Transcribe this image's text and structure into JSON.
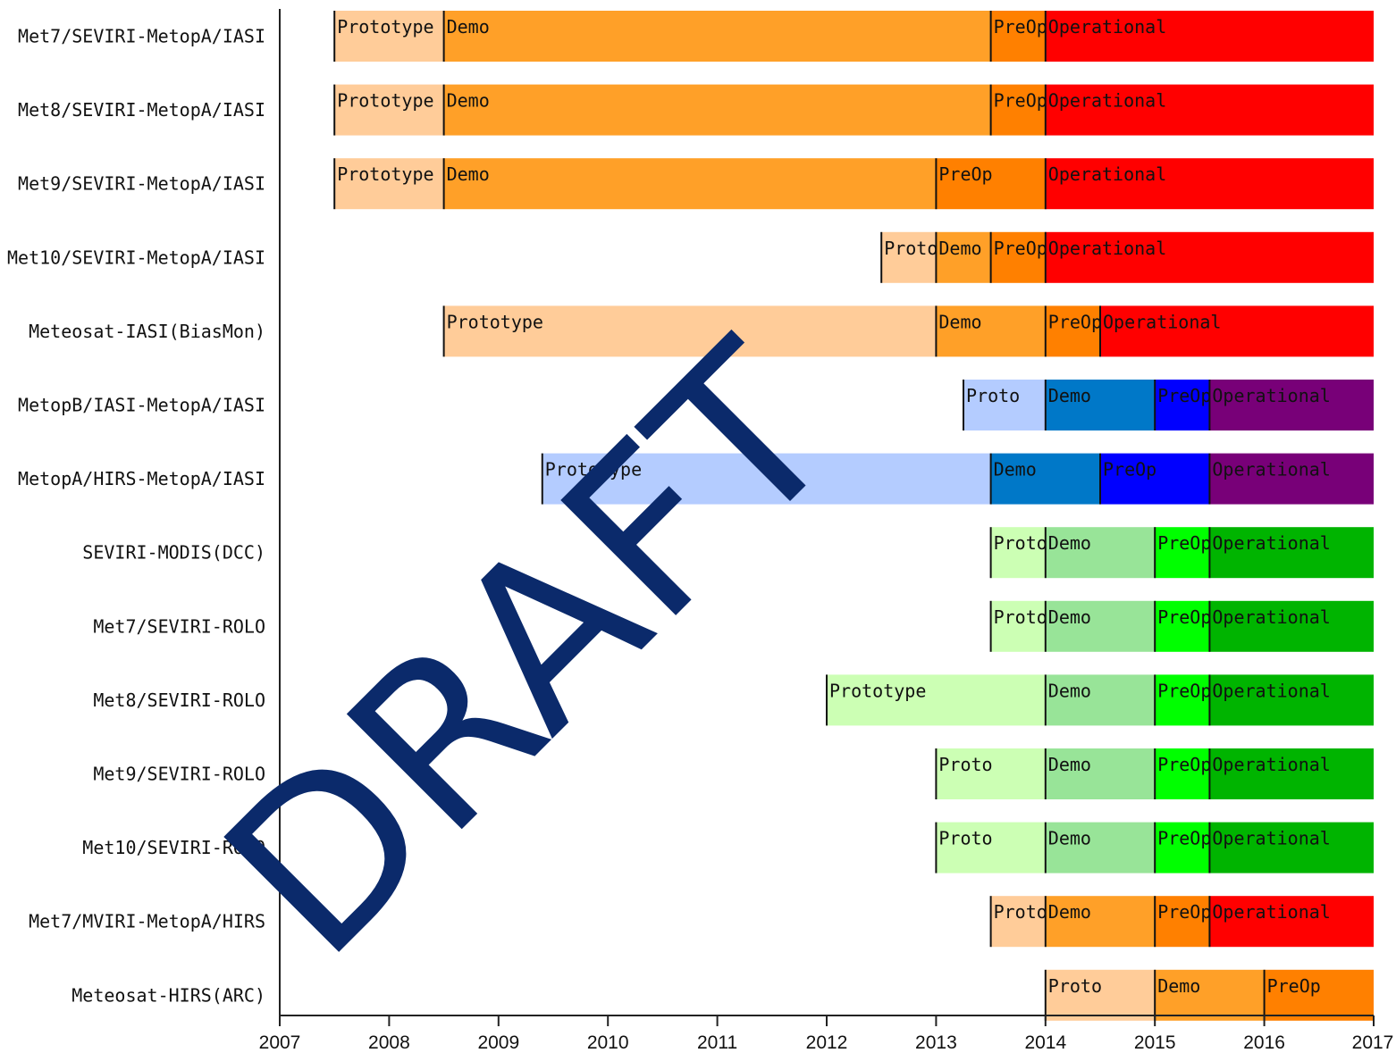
{
  "chart_data": {
    "type": "gantt",
    "title": "",
    "xlabel": "",
    "ylabel": "",
    "xlim": [
      2007,
      2017
    ],
    "x_ticks": [
      "2007",
      "2008",
      "2009",
      "2010",
      "2011",
      "2012",
      "2013",
      "2014",
      "2015",
      "2016",
      "2017"
    ],
    "grid": false,
    "watermark": "DRAFT",
    "colors": {
      "orange": {
        "Prototype": "#ffcc99",
        "Demo": "#ffa028",
        "PreOp": "#ff8000",
        "Operational": "#ff0000"
      },
      "blue": {
        "Prototype": "#b4ccff",
        "Demo": "#0078c8",
        "PreOp": "#0000ff",
        "Operational": "#780078"
      },
      "green": {
        "Prototype": "#ccffb4",
        "Demo": "#98e498",
        "PreOp": "#00ff00",
        "Operational": "#00b400"
      }
    },
    "rows": [
      {
        "label": "Met7/SEVIRI-MetopA/IASI",
        "scheme": "orange",
        "segments": [
          {
            "phase": "Prototype",
            "label": "Prototype",
            "start": 2007.5,
            "end": 2008.5
          },
          {
            "phase": "Demo",
            "label": "Demo",
            "start": 2008.5,
            "end": 2013.5
          },
          {
            "phase": "PreOp",
            "label": "PreOp",
            "start": 2013.5,
            "end": 2014.0
          },
          {
            "phase": "Operational",
            "label": "Operational",
            "start": 2014.0,
            "end": 2017.0
          }
        ]
      },
      {
        "label": "Met8/SEVIRI-MetopA/IASI",
        "scheme": "orange",
        "segments": [
          {
            "phase": "Prototype",
            "label": "Prototype",
            "start": 2007.5,
            "end": 2008.5
          },
          {
            "phase": "Demo",
            "label": "Demo",
            "start": 2008.5,
            "end": 2013.5
          },
          {
            "phase": "PreOp",
            "label": "PreOp",
            "start": 2013.5,
            "end": 2014.0
          },
          {
            "phase": "Operational",
            "label": "Operational",
            "start": 2014.0,
            "end": 2017.0
          }
        ]
      },
      {
        "label": "Met9/SEVIRI-MetopA/IASI",
        "scheme": "orange",
        "segments": [
          {
            "phase": "Prototype",
            "label": "Prototype",
            "start": 2007.5,
            "end": 2008.5
          },
          {
            "phase": "Demo",
            "label": "Demo",
            "start": 2008.5,
            "end": 2013.0
          },
          {
            "phase": "PreOp",
            "label": "PreOp",
            "start": 2013.0,
            "end": 2014.0
          },
          {
            "phase": "Operational",
            "label": "Operational",
            "start": 2014.0,
            "end": 2017.0
          }
        ]
      },
      {
        "label": "Met10/SEVIRI-MetopA/IASI",
        "scheme": "orange",
        "segments": [
          {
            "phase": "Prototype",
            "label": "Proto",
            "start": 2012.5,
            "end": 2013.0
          },
          {
            "phase": "Demo",
            "label": "Demo",
            "start": 2013.0,
            "end": 2013.5
          },
          {
            "phase": "PreOp",
            "label": "PreOp",
            "start": 2013.5,
            "end": 2014.0
          },
          {
            "phase": "Operational",
            "label": "Operational",
            "start": 2014.0,
            "end": 2017.0
          }
        ]
      },
      {
        "label": "Meteosat-IASI(BiasMon)",
        "scheme": "orange",
        "segments": [
          {
            "phase": "Prototype",
            "label": "Prototype",
            "start": 2008.5,
            "end": 2013.0
          },
          {
            "phase": "Demo",
            "label": "Demo",
            "start": 2013.0,
            "end": 2014.0
          },
          {
            "phase": "PreOp",
            "label": "PreOp",
            "start": 2014.0,
            "end": 2014.5
          },
          {
            "phase": "Operational",
            "label": "Operational",
            "start": 2014.5,
            "end": 2017.0
          }
        ]
      },
      {
        "label": "MetopB/IASI-MetopA/IASI",
        "scheme": "blue",
        "segments": [
          {
            "phase": "Prototype",
            "label": "Proto",
            "start": 2013.25,
            "end": 2014.0
          },
          {
            "phase": "Demo",
            "label": "Demo",
            "start": 2014.0,
            "end": 2015.0
          },
          {
            "phase": "PreOp",
            "label": "PreOp",
            "start": 2015.0,
            "end": 2015.5
          },
          {
            "phase": "Operational",
            "label": "Operational",
            "start": 2015.5,
            "end": 2017.0
          }
        ]
      },
      {
        "label": "MetopA/HIRS-MetopA/IASI",
        "scheme": "blue",
        "segments": [
          {
            "phase": "Prototype",
            "label": "Prototype",
            "start": 2009.4,
            "end": 2013.5
          },
          {
            "phase": "Demo",
            "label": "Demo",
            "start": 2013.5,
            "end": 2014.5
          },
          {
            "phase": "PreOp",
            "label": "PreOp",
            "start": 2014.5,
            "end": 2015.5
          },
          {
            "phase": "Operational",
            "label": "Operational",
            "start": 2015.5,
            "end": 2017.0
          }
        ]
      },
      {
        "label": "SEVIRI-MODIS(DCC)",
        "scheme": "green",
        "segments": [
          {
            "phase": "Prototype",
            "label": "Proto",
            "start": 2013.5,
            "end": 2014.0
          },
          {
            "phase": "Demo",
            "label": "Demo",
            "start": 2014.0,
            "end": 2015.0
          },
          {
            "phase": "PreOp",
            "label": "PreOp",
            "start": 2015.0,
            "end": 2015.5
          },
          {
            "phase": "Operational",
            "label": "Operational",
            "start": 2015.5,
            "end": 2017.0
          }
        ]
      },
      {
        "label": "Met7/SEVIRI-ROLO",
        "scheme": "green",
        "segments": [
          {
            "phase": "Prototype",
            "label": "Proto",
            "start": 2013.5,
            "end": 2014.0
          },
          {
            "phase": "Demo",
            "label": "Demo",
            "start": 2014.0,
            "end": 2015.0
          },
          {
            "phase": "PreOp",
            "label": "PreOp",
            "start": 2015.0,
            "end": 2015.5
          },
          {
            "phase": "Operational",
            "label": "Operational",
            "start": 2015.5,
            "end": 2017.0
          }
        ]
      },
      {
        "label": "Met8/SEVIRI-ROLO",
        "scheme": "green",
        "segments": [
          {
            "phase": "Prototype",
            "label": "Prototype",
            "start": 2012.0,
            "end": 2014.0
          },
          {
            "phase": "Demo",
            "label": "Demo",
            "start": 2014.0,
            "end": 2015.0
          },
          {
            "phase": "PreOp",
            "label": "PreOp",
            "start": 2015.0,
            "end": 2015.5
          },
          {
            "phase": "Operational",
            "label": "Operational",
            "start": 2015.5,
            "end": 2017.0
          }
        ]
      },
      {
        "label": "Met9/SEVIRI-ROLO",
        "scheme": "green",
        "segments": [
          {
            "phase": "Prototype",
            "label": "Proto",
            "start": 2013.0,
            "end": 2014.0
          },
          {
            "phase": "Demo",
            "label": "Demo",
            "start": 2014.0,
            "end": 2015.0
          },
          {
            "phase": "PreOp",
            "label": "PreOp",
            "start": 2015.0,
            "end": 2015.5
          },
          {
            "phase": "Operational",
            "label": "Operational",
            "start": 2015.5,
            "end": 2017.0
          }
        ]
      },
      {
        "label": "Met10/SEVIRI-ROLO",
        "scheme": "green",
        "segments": [
          {
            "phase": "Prototype",
            "label": "Proto",
            "start": 2013.0,
            "end": 2014.0
          },
          {
            "phase": "Demo",
            "label": "Demo",
            "start": 2014.0,
            "end": 2015.0
          },
          {
            "phase": "PreOp",
            "label": "PreOp",
            "start": 2015.0,
            "end": 2015.5
          },
          {
            "phase": "Operational",
            "label": "Operational",
            "start": 2015.5,
            "end": 2017.0
          }
        ]
      },
      {
        "label": "Met7/MVIRI-MetopA/HIRS",
        "scheme": "orange",
        "segments": [
          {
            "phase": "Prototype",
            "label": "Proto",
            "start": 2013.5,
            "end": 2014.0
          },
          {
            "phase": "Demo",
            "label": "Demo",
            "start": 2014.0,
            "end": 2015.0
          },
          {
            "phase": "PreOp",
            "label": "PreOp",
            "start": 2015.0,
            "end": 2015.5
          },
          {
            "phase": "Operational",
            "label": "Operational",
            "start": 2015.5,
            "end": 2017.0
          }
        ]
      },
      {
        "label": "Meteosat-HIRS(ARC)",
        "scheme": "orange",
        "segments": [
          {
            "phase": "Prototype",
            "label": "Proto",
            "start": 2014.0,
            "end": 2015.0
          },
          {
            "phase": "Demo",
            "label": "Demo",
            "start": 2015.0,
            "end": 2016.0
          },
          {
            "phase": "PreOp",
            "label": "PreOp",
            "start": 2016.0,
            "end": 2017.0
          }
        ]
      }
    ]
  }
}
